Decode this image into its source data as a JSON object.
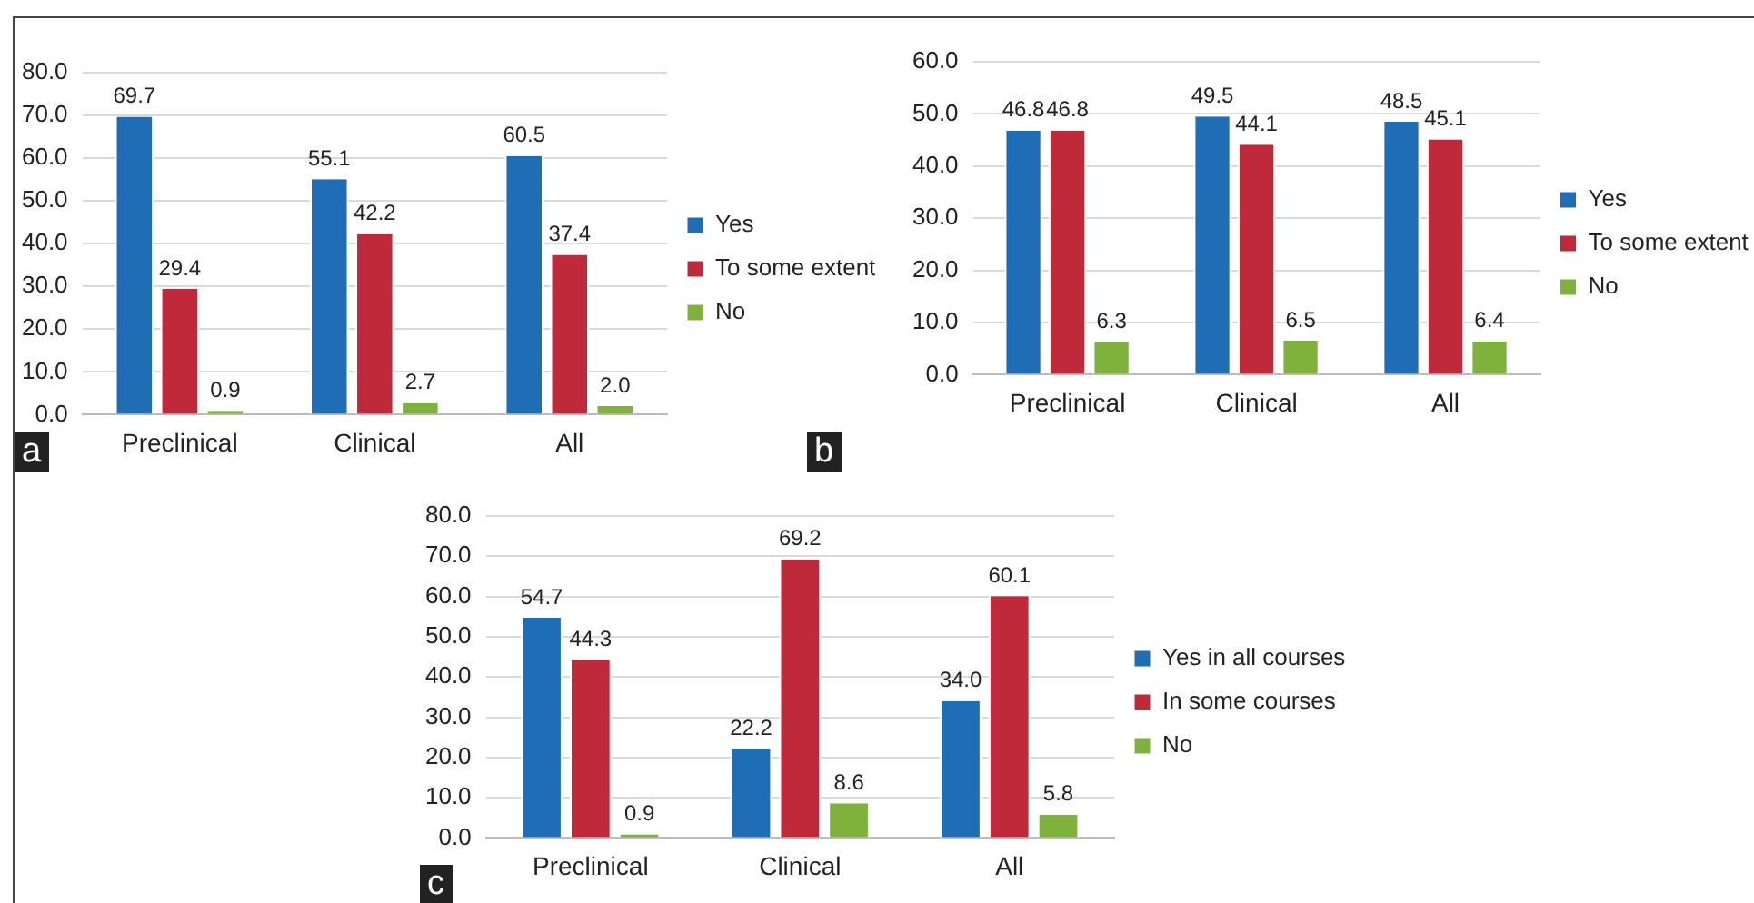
{
  "chart_data": [
    {
      "type": "bar",
      "categories": [
        "Preclinical",
        "Clinical",
        "All"
      ],
      "series": [
        {
          "name": "Yes",
          "color": "#1f6db5",
          "values": [
            69.7,
            55.1,
            60.5
          ],
          "value_labels": [
            "69.7",
            "55.1",
            "60.5"
          ]
        },
        {
          "name": "To some extent",
          "color": "#bf2a3b",
          "values": [
            29.4,
            42.2,
            37.4
          ],
          "value_labels": [
            "29.4",
            "42.2",
            "37.4"
          ]
        },
        {
          "name": "No",
          "color": "#7eb23d",
          "values": [
            0.9,
            2.7,
            2.0
          ],
          "value_labels": [
            "0.9",
            "2.7",
            "2.0"
          ]
        }
      ],
      "ylim": [
        0,
        80
      ],
      "yticks": [
        {
          "value": 0,
          "label": "0.0"
        },
        {
          "value": 10,
          "label": "10.0"
        },
        {
          "value": 20,
          "label": "20.0"
        },
        {
          "value": 30,
          "label": "30.0"
        },
        {
          "value": 40,
          "label": "40.0"
        },
        {
          "value": 50,
          "label": "50.0"
        },
        {
          "value": 60,
          "label": "60.0"
        },
        {
          "value": 70,
          "label": "70.0"
        },
        {
          "value": 80,
          "label": "80.0"
        }
      ],
      "grid": "y",
      "legend": "right",
      "annotations": [
        "a"
      ]
    },
    {
      "type": "bar",
      "categories": [
        "Preclinical",
        "Clinical",
        "All"
      ],
      "series": [
        {
          "name": "Yes",
          "color": "#1f6db5",
          "values": [
            46.8,
            49.5,
            48.5
          ],
          "value_labels": [
            "46.8",
            "49.5",
            "48.5"
          ]
        },
        {
          "name": "To some extent",
          "color": "#bf2a3b",
          "values": [
            46.8,
            44.1,
            45.1
          ],
          "value_labels": [
            "46.8",
            "44.1",
            "45.1"
          ]
        },
        {
          "name": "No",
          "color": "#7eb23d",
          "values": [
            6.3,
            6.5,
            6.4
          ],
          "value_labels": [
            "6.3",
            "6.5",
            "6.4"
          ]
        }
      ],
      "ylim": [
        0,
        60
      ],
      "yticks": [
        {
          "value": 0,
          "label": "0.0"
        },
        {
          "value": 10,
          "label": "10.0"
        },
        {
          "value": 20,
          "label": "20.0"
        },
        {
          "value": 30,
          "label": "30.0"
        },
        {
          "value": 40,
          "label": "40.0"
        },
        {
          "value": 50,
          "label": "50.0"
        },
        {
          "value": 60,
          "label": "60.0"
        }
      ],
      "grid": "y",
      "legend": "right",
      "annotations": [
        "b"
      ]
    },
    {
      "type": "bar",
      "categories": [
        "Preclinical",
        "Clinical",
        "All"
      ],
      "series": [
        {
          "name": "Yes in all courses",
          "color": "#1f6db5",
          "values": [
            54.7,
            22.2,
            34.0
          ],
          "value_labels": [
            "54.7",
            "22.2",
            "34.0"
          ]
        },
        {
          "name": "In some courses",
          "color": "#bf2a3b",
          "values": [
            44.3,
            69.2,
            60.1
          ],
          "value_labels": [
            "44.3",
            "69.2",
            "60.1"
          ]
        },
        {
          "name": "No",
          "color": "#7eb23d",
          "values": [
            0.9,
            8.6,
            5.8
          ],
          "value_labels": [
            "0.9",
            "8.6",
            "5.8"
          ]
        }
      ],
      "ylim": [
        0,
        80
      ],
      "yticks": [
        {
          "value": 0,
          "label": "0.0"
        },
        {
          "value": 10,
          "label": "10.0"
        },
        {
          "value": 20,
          "label": "20.0"
        },
        {
          "value": 30,
          "label": "30.0"
        },
        {
          "value": 40,
          "label": "40.0"
        },
        {
          "value": 50,
          "label": "50.0"
        },
        {
          "value": 60,
          "label": "60.0"
        },
        {
          "value": 70,
          "label": "70.0"
        },
        {
          "value": 80,
          "label": "80.0"
        }
      ],
      "grid": "y",
      "legend": "right",
      "annotations": [
        "c"
      ]
    }
  ]
}
